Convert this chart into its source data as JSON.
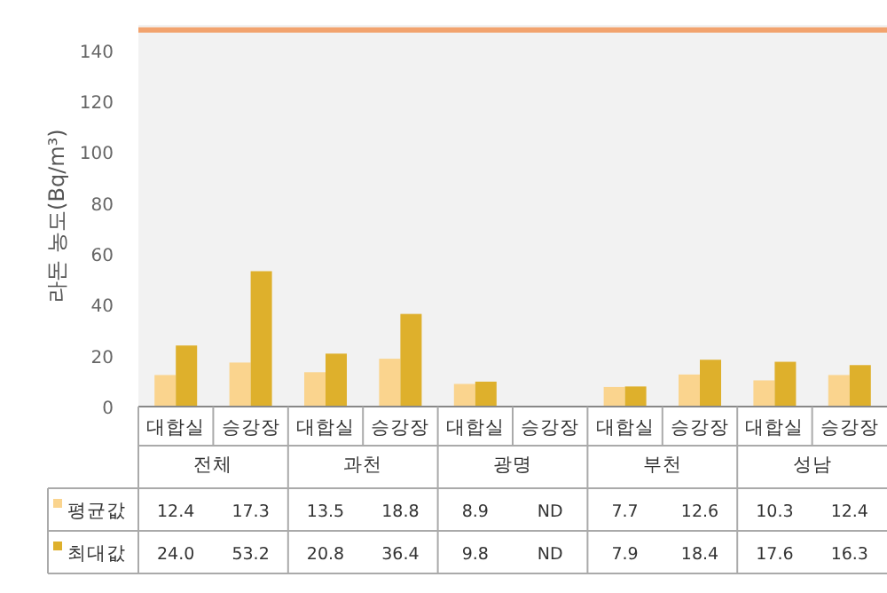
{
  "chart_data": {
    "type": "bar",
    "ylabel": "라돈 농도(Bq/m³)",
    "categories": [
      "대합실",
      "승강장",
      "대합실",
      "승강장",
      "대합실",
      "승강장",
      "대합실",
      "승강장",
      "대합실",
      "승강장"
    ],
    "annotations": [
      "전체",
      "과천",
      "광명",
      "부천",
      "성남"
    ],
    "series": [
      {
        "name": "평균값",
        "color": "#fad48e",
        "values": [
          12.4,
          17.3,
          13.5,
          18.8,
          8.9,
          null,
          7.7,
          12.6,
          10.3,
          12.4
        ],
        "value_labels": [
          "12.4",
          "17.3",
          "13.5",
          "18.8",
          "8.9",
          "ND",
          "7.7",
          "12.6",
          "10.3",
          "12.4"
        ]
      },
      {
        "name": "최대값",
        "color": "#deb02c",
        "values": [
          24.0,
          53.2,
          20.8,
          36.4,
          9.8,
          null,
          7.9,
          18.4,
          17.6,
          16.3
        ],
        "value_labels": [
          "24.0",
          "53.2",
          "20.8",
          "36.4",
          "9.8",
          "ND",
          "7.9",
          "18.4",
          "17.6",
          "16.3"
        ]
      }
    ],
    "ylim": [
      0,
      150
    ],
    "yticks": [
      0,
      20,
      40,
      60,
      80,
      100,
      120,
      140
    ],
    "ref_lines": [
      {
        "axis": "y",
        "value": 148,
        "color": "#f2a36e"
      }
    ],
    "legend": "bottom",
    "grid": false
  }
}
